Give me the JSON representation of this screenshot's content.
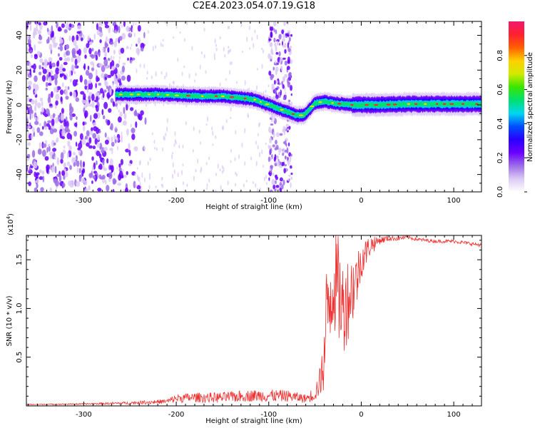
{
  "figure": {
    "title": "C2E4.2023.054.07.19.G18"
  },
  "chart_data": [
    {
      "type": "heatmap",
      "xlabel": "Height of straight line (km)",
      "ylabel": "Frequency (Hz)",
      "xlim": [
        -362,
        130
      ],
      "ylim": [
        -50,
        48
      ],
      "xticks": [
        -300,
        -200,
        -100,
        0,
        100
      ],
      "yticks": [
        -40,
        -20,
        0,
        20,
        40
      ],
      "colorbar": {
        "label": "Normalized spectral amplitude",
        "range": [
          0,
          1
        ],
        "ticks": [
          "0.0",
          "0.2",
          "0.4",
          "0.6",
          "0.8"
        ],
        "colormap": [
          "#ffffff",
          "#dccaf4",
          "#9c6ce8",
          "#6a00ff",
          "#2a00ff",
          "#0050ff",
          "#00d8f0",
          "#00e070",
          "#3ae600",
          "#d2ea00",
          "#ffd000",
          "#ff6000",
          "#ff2030",
          "#f0186e"
        ]
      },
      "signal_track": {
        "x": [
          -265,
          -250,
          -220,
          -200,
          -170,
          -150,
          -130,
          -115,
          -100,
          -90,
          -80,
          -70,
          -62,
          -55,
          -50,
          -40,
          -30,
          -20,
          -10,
          0,
          20,
          50,
          80,
          100,
          130
        ],
        "freq": [
          6,
          6,
          6,
          5.5,
          5,
          5,
          4,
          3,
          0,
          -2,
          -4,
          -6,
          -6,
          -2,
          1,
          2,
          1,
          0.5,
          0,
          0,
          0,
          0.5,
          0.5,
          0.5,
          0.5
        ]
      },
      "noise_band_x": [
        -362,
        -270
      ],
      "noise_column_x": [
        -100,
        -75
      ]
    },
    {
      "type": "line",
      "xlabel": "Height of straight line (km)",
      "ylabel": "SNR (10 * v/v)",
      "scale_label": "(x10",
      "scale_exponent": "4",
      "scale_close": ")",
      "xlim": [
        -362,
        130
      ],
      "ylim": [
        0,
        17500
      ],
      "xticks": [
        -300,
        -200,
        -100,
        0,
        100
      ],
      "yticks": [
        0.5,
        1.0,
        1.5
      ],
      "ytick_labels": [
        "0.5",
        "1.0",
        "1.5"
      ],
      "color": "#ee3333",
      "series": [
        {
          "x": [
            -362,
            -300,
            -250,
            -210,
            -200,
            -180,
            -150,
            -120,
            -100,
            -80,
            -60,
            -50,
            -45,
            -40,
            -38,
            -35,
            -30,
            -25,
            -20,
            -15,
            -10,
            -5,
            0,
            10,
            20,
            30,
            40,
            50,
            60,
            80,
            100,
            130
          ],
          "y": [
            300,
            400,
            500,
            700,
            1100,
            1200,
            1000,
            1500,
            1300,
            1400,
            1000,
            1600,
            3000,
            5000,
            8000,
            11000,
            13000,
            12000,
            10000,
            11000,
            12000,
            13000,
            15000,
            16500,
            17000,
            17200,
            17200,
            17300,
            17100,
            16900,
            16900,
            16500
          ],
          "noise": [
            100,
            150,
            300,
            500,
            900,
            1000,
            1100,
            1200,
            1300,
            1200,
            900,
            1600,
            3000,
            5500,
            6000,
            6000,
            5500,
            5500,
            5000,
            4500,
            4000,
            3000,
            2000,
            1000,
            700,
            500,
            400,
            300,
            300,
            300,
            300,
            300
          ]
        }
      ]
    }
  ]
}
